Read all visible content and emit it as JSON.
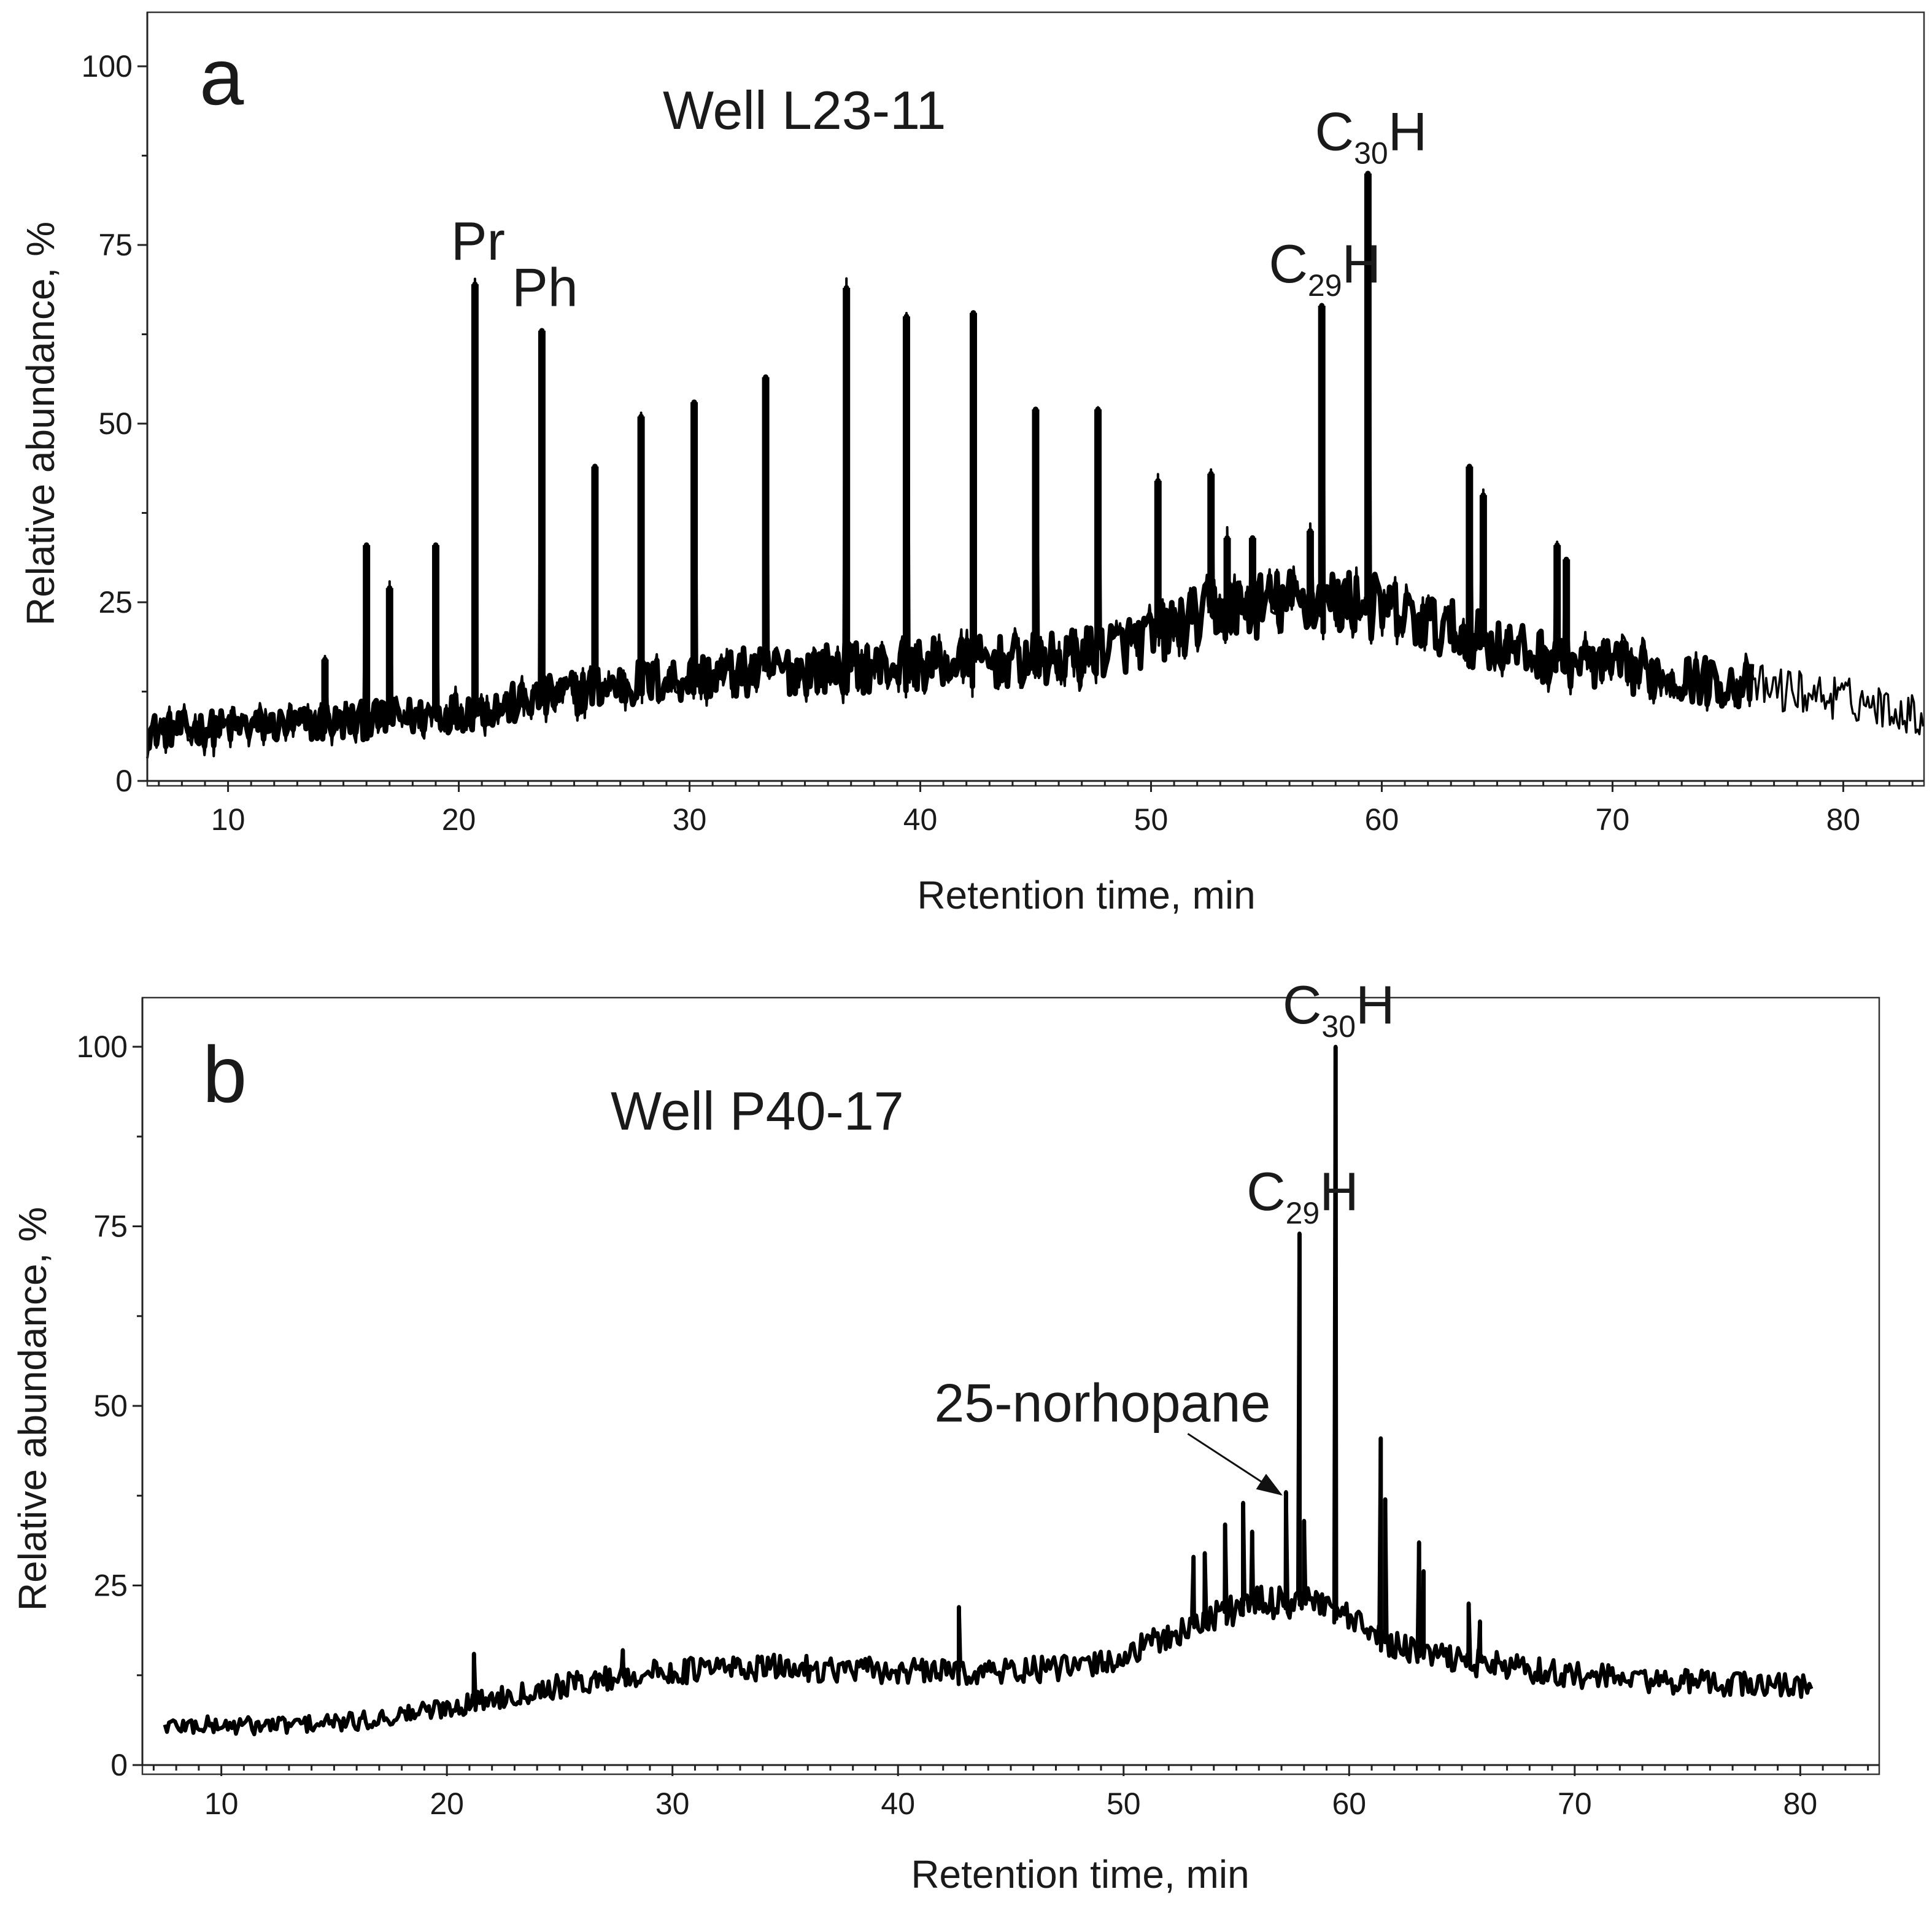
{
  "chart_data": [
    {
      "type": "line",
      "panel_letter": "a",
      "title": "Well L23-11",
      "xlabel": "Retention time, min",
      "ylabel": "Relative abundance, %",
      "xlim": [
        6.5,
        83.5
      ],
      "ylim": [
        0,
        105
      ],
      "xticks": [
        10,
        20,
        30,
        40,
        50,
        60,
        70,
        80
      ],
      "yticks": [
        0,
        25,
        50,
        75,
        100
      ],
      "grid": false,
      "legend": "none",
      "series": [
        {
          "color": "#000000",
          "baseline": [
            [
              6.5,
              7
            ],
            [
              10,
              7.5
            ],
            [
              14,
              8
            ],
            [
              18,
              9
            ],
            [
              22,
              10.5
            ],
            [
              26,
              13
            ],
            [
              30,
              14.5
            ],
            [
              34,
              15.5
            ],
            [
              38,
              16
            ],
            [
              42,
              16.5
            ],
            [
              46,
              17
            ],
            [
              50,
              20
            ],
            [
              53,
              24
            ],
            [
              56,
              25
            ],
            [
              59,
              25
            ],
            [
              62,
              22
            ],
            [
              66,
              18
            ],
            [
              70,
              16
            ],
            [
              74,
              14
            ],
            [
              78,
              12.5
            ],
            [
              81,
              11
            ],
            [
              83.5,
              9
            ]
          ],
          "peaks": [
            [
              14.2,
              17
            ],
            [
              16.0,
              33
            ],
            [
              17.0,
              27
            ],
            [
              19.0,
              33
            ],
            [
              20.7,
              69.5
            ],
            [
              23.6,
              63
            ],
            [
              25.9,
              44
            ],
            [
              27.9,
              51
            ],
            [
              30.2,
              53
            ],
            [
              33.3,
              56.5
            ],
            [
              36.8,
              69
            ],
            [
              39.4,
              65
            ],
            [
              42.3,
              65.5
            ],
            [
              45.0,
              52
            ],
            [
              47.7,
              52
            ],
            [
              50.3,
              42
            ],
            [
              52.6,
              43
            ],
            [
              53.3,
              34
            ],
            [
              54.4,
              34
            ],
            [
              56.9,
              35
            ],
            [
              57.4,
              66.5
            ],
            [
              59.4,
              85
            ],
            [
              63.8,
              44
            ],
            [
              64.4,
              40
            ],
            [
              67.6,
              33
            ],
            [
              68.0,
              31
            ]
          ]
        }
      ],
      "annotations": [
        {
          "text": "Pr",
          "x": 20.7,
          "y": 69.5
        },
        {
          "text": "Ph",
          "x": 23.6,
          "y": 63
        },
        {
          "text_main": "C",
          "text_sub": "29",
          "text_end": "H",
          "x": 57.4,
          "y": 66.5
        },
        {
          "text_main": "C",
          "text_sub": "30",
          "text_end": "H",
          "x": 59.4,
          "y": 85
        }
      ]
    },
    {
      "type": "line",
      "panel_letter": "b",
      "title": "Well P40-17",
      "xlabel": "Retention time, min",
      "ylabel": "Relative abundance, %",
      "xlim": [
        6.5,
        83.5
      ],
      "ylim": [
        0,
        106
      ],
      "xticks": [
        10,
        20,
        30,
        40,
        50,
        60,
        70,
        80
      ],
      "yticks": [
        0,
        25,
        50,
        75,
        100
      ],
      "grid": false,
      "legend": "none",
      "series": [
        {
          "color": "#000000",
          "baseline": [
            [
              7.5,
              5.5
            ],
            [
              12,
              5.5
            ],
            [
              16,
              6
            ],
            [
              20,
              8
            ],
            [
              24,
              10.5
            ],
            [
              28,
              12.5
            ],
            [
              32,
              13.5
            ],
            [
              36,
              13.5
            ],
            [
              40,
              13
            ],
            [
              44,
              13
            ],
            [
              48,
              13.5
            ],
            [
              50,
              15
            ],
            [
              52,
              18
            ],
            [
              55,
              22
            ],
            [
              58,
              23
            ],
            [
              60,
              20
            ],
            [
              62,
              16.5
            ],
            [
              65,
              14.5
            ],
            [
              70,
              12.5
            ],
            [
              75,
              11.5
            ],
            [
              80.5,
              11
            ]
          ],
          "peaks": [
            [
              21.2,
              15.5
            ],
            [
              27.8,
              16
            ],
            [
              42.7,
              22
            ],
            [
              53.1,
              29
            ],
            [
              53.6,
              29.5
            ],
            [
              54.5,
              33.5
            ],
            [
              55.3,
              36.5
            ],
            [
              55.7,
              32.5
            ],
            [
              57.2,
              38
            ],
            [
              57.8,
              74
            ],
            [
              58.0,
              34
            ],
            [
              59.4,
              100
            ],
            [
              61.4,
              45.5
            ],
            [
              61.6,
              37
            ],
            [
              63.1,
              31
            ],
            [
              63.3,
              27
            ],
            [
              65.3,
              22.5
            ],
            [
              65.8,
              20
            ]
          ]
        }
      ],
      "annotations": [
        {
          "text": "25-norhopane",
          "x": 57.2,
          "y": 38,
          "arrow": true
        },
        {
          "text_main": "C",
          "text_sub": "29",
          "text_end": "H",
          "x": 57.8,
          "y": 74
        },
        {
          "text_main": "C",
          "text_sub": "30",
          "text_end": "H",
          "x": 59.4,
          "y": 100
        }
      ]
    }
  ]
}
